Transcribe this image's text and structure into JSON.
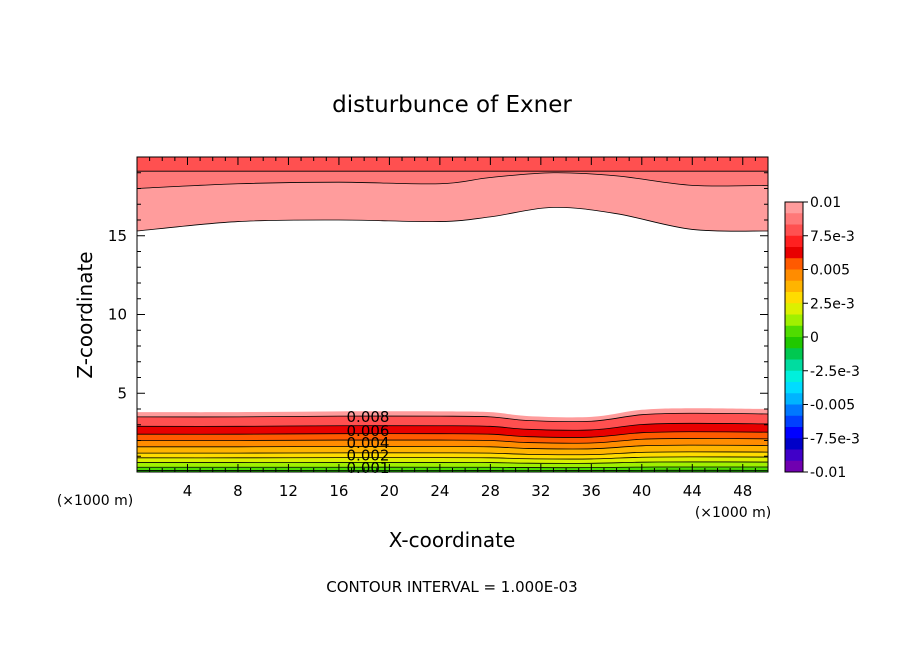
{
  "chart_data": {
    "type": "contour",
    "title": "disturbunce of Exner",
    "xlabel": "X-coordinate",
    "ylabel": "Z-coordinate",
    "x_unit_left": "(×1000 m)",
    "x_unit_right": "(×1000 m)",
    "xlim": [
      0,
      50
    ],
    "ylim": [
      0,
      20
    ],
    "xticks": [
      4,
      8,
      12,
      16,
      20,
      24,
      28,
      32,
      36,
      40,
      44,
      48
    ],
    "yticks": [
      5,
      10,
      15
    ],
    "footer": "CONTOUR INTERVAL = 1.000E-03",
    "colorbar": {
      "labels": [
        "0.01",
        "7.5e-3",
        "0.005",
        "2.5e-3",
        "0",
        "-2.5e-3",
        "-0.005",
        "-7.5e-3",
        "-0.01"
      ],
      "colors": [
        "#ff9c9c",
        "#ff7878",
        "#ff5050",
        "#ff2020",
        "#e80000",
        "#ff5a00",
        "#ff8c00",
        "#ffb400",
        "#ffdc00",
        "#dcf000",
        "#a0f000",
        "#50dc00",
        "#20c800",
        "#00c850",
        "#00dca0",
        "#00f0dc",
        "#00dcff",
        "#00b4ff",
        "#0078ff",
        "#0040ff",
        "#0000ff",
        "#0000c8",
        "#4000c8",
        "#7000b0"
      ]
    },
    "upper_field": {
      "bands": [
        {
          "level": 0.008,
          "color": "#ff9c9c",
          "x": [
            0,
            8,
            16,
            24,
            28,
            33,
            38,
            44,
            50
          ],
          "z": [
            15.3,
            15.9,
            16.0,
            15.9,
            16.2,
            16.8,
            16.4,
            15.4,
            15.3
          ]
        },
        {
          "level": 0.009,
          "color": "#ff7878",
          "x": [
            0,
            8,
            16,
            24,
            28,
            33,
            38,
            44,
            50
          ],
          "z": [
            18.0,
            18.3,
            18.4,
            18.3,
            18.7,
            19.0,
            18.8,
            18.2,
            18.2
          ]
        },
        {
          "level": 0.01,
          "color": "#ff5050",
          "x": [
            0,
            50
          ],
          "z": [
            19.1,
            19.1
          ]
        }
      ]
    },
    "lower_field": {
      "contour_labels": [
        "0.008",
        "0.006",
        "0.004",
        "0.002",
        "0.001"
      ],
      "bands": [
        {
          "level": 0.009,
          "color": "#ff9c9c",
          "z0": 3.8
        },
        {
          "level": 0.008,
          "color": "#ff5050",
          "z0": 3.5
        },
        {
          "level": 0.007,
          "color": "#e80000",
          "z0": 2.9
        },
        {
          "level": 0.006,
          "color": "#ff5a00",
          "z0": 2.4
        },
        {
          "level": 0.005,
          "color": "#ff8c00",
          "z0": 2.0
        },
        {
          "level": 0.004,
          "color": "#ffb400",
          "z0": 1.6
        },
        {
          "level": 0.003,
          "color": "#ffdc00",
          "z0": 1.2
        },
        {
          "level": 0.002,
          "color": "#dcf000",
          "z0": 0.9
        },
        {
          "level": 0.001,
          "color": "#a0f000",
          "z0": 0.6
        },
        {
          "level": 0.0,
          "color": "#50dc00",
          "z0": 0.3
        },
        {
          "level": -0.001,
          "color": "#20c800",
          "z0": 0.1
        }
      ],
      "x": [
        0,
        8,
        16,
        24,
        28,
        31,
        36,
        40,
        44,
        50
      ],
      "offset": [
        0,
        0,
        0.05,
        0.05,
        0,
        -0.25,
        -0.3,
        0.15,
        0.25,
        0.2
      ]
    }
  }
}
